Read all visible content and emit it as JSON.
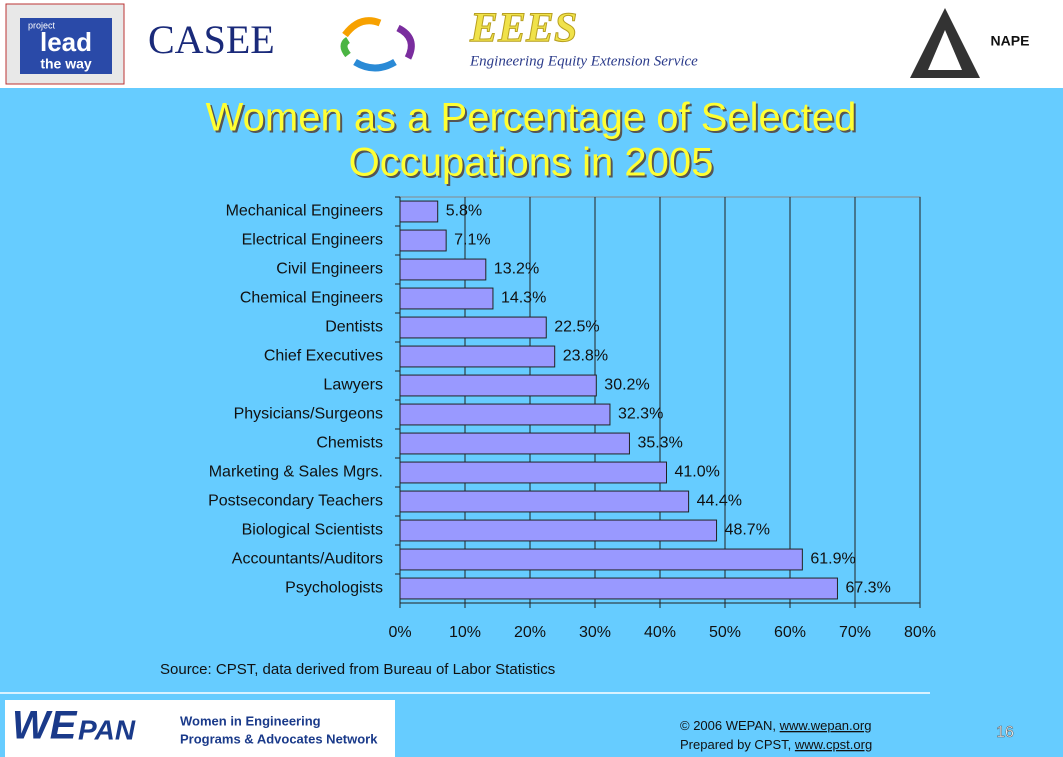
{
  "header": {
    "logos": [
      "project",
      "lead",
      "the way",
      "CASEE",
      "EEES",
      "Engineering Equity Extension Service",
      "NAPE"
    ]
  },
  "chart_data": {
    "type": "bar",
    "orientation": "horizontal",
    "title": [
      "Women as a Percentage of Selected",
      "Occupations in 2005"
    ],
    "categories": [
      "Mechanical Engineers",
      "Electrical Engineers",
      "Civil Engineers",
      "Chemical Engineers",
      "Dentists",
      "Chief Executives",
      "Lawyers",
      "Physicians/Surgeons",
      "Chemists",
      "Marketing & Sales Mgrs.",
      "Postsecondary Teachers",
      "Biological Scientists",
      "Accountants/Auditors",
      "Psychologists"
    ],
    "values": [
      5.8,
      7.1,
      13.2,
      14.3,
      22.5,
      23.8,
      30.2,
      32.3,
      35.3,
      41.0,
      44.4,
      48.7,
      61.9,
      67.3
    ],
    "value_labels": [
      "5.8%",
      "7.1%",
      "13.2%",
      "14.3%",
      "22.5%",
      "23.8%",
      "30.2%",
      "32.3%",
      "35.3%",
      "41.0%",
      "44.4%",
      "48.7%",
      "61.9%",
      "67.3%"
    ],
    "color": "#9999ff",
    "xlim": [
      0,
      80
    ],
    "xticks": [
      {
        "value": 0,
        "label": "0%"
      },
      {
        "value": 10,
        "label": "10%"
      },
      {
        "value": 20,
        "label": "20%"
      },
      {
        "value": 30,
        "label": "30%"
      },
      {
        "value": 40,
        "label": "40%"
      },
      {
        "value": 50,
        "label": "50%"
      },
      {
        "value": 60,
        "label": "60%"
      },
      {
        "value": 70,
        "label": "70%"
      },
      {
        "value": 80,
        "label": "80%"
      }
    ],
    "grid": true
  },
  "source": "Source: CPST, data derived from Bureau of Labor Statistics",
  "footer": {
    "logo": [
      "WE",
      "PAN",
      "Women in Engineering",
      "Programs & Advocates Network"
    ],
    "copyright": "© 2006 WEPAN, ",
    "copyright_link": "www.wepan.org",
    "prepared": "Prepared by CPST, ",
    "prepared_link": "www.cpst.org",
    "page": "16"
  }
}
